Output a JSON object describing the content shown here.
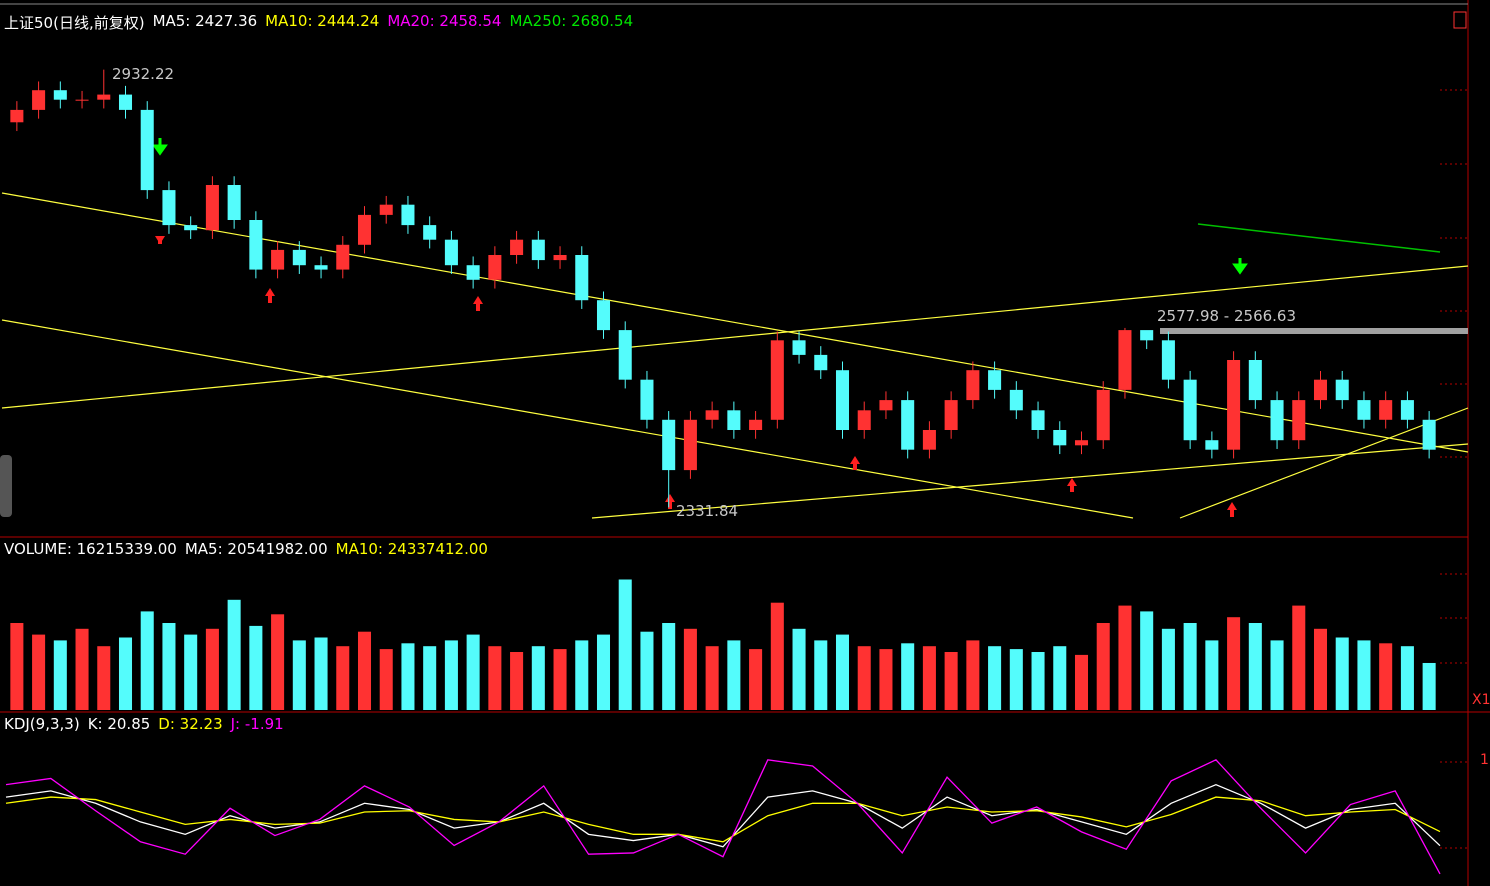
{
  "header": {
    "title": "上证50(日线,前复权)",
    "items": [
      {
        "text": "MA5: 2427.36",
        "color": "#ffffff"
      },
      {
        "text": "MA10: 2444.24",
        "color": "#ffff00"
      },
      {
        "text": "MA20: 2458.54",
        "color": "#ff00ff"
      },
      {
        "text": "MA250: 2680.54",
        "color": "#00e600"
      }
    ]
  },
  "volume_header": [
    {
      "text": "VOLUME: 16215339.00",
      "color": "#ffffff"
    },
    {
      "text": "MA5: 20541982.00",
      "color": "#ffffff"
    },
    {
      "text": "MA10: 24337412.00",
      "color": "#ffff00"
    }
  ],
  "kdj_header": [
    {
      "text": "KDJ(9,3,3)",
      "color": "#ffffff"
    },
    {
      "text": "K: 20.85",
      "color": "#ffffff"
    },
    {
      "text": "D: 32.23",
      "color": "#ffff00"
    },
    {
      "text": "J: -1.91",
      "color": "#ff00ff"
    }
  ],
  "annotations": [
    "2932.22",
    "2331.84",
    "2577.98 - 2566.63"
  ],
  "side_labels": [
    "X1",
    "1"
  ],
  "chart_data": [
    {
      "type": "candlestick",
      "ylim": [
        2294,
        3014
      ],
      "up_color": "#ff3232",
      "down_color": "#54fcfc",
      "open": [
        2860,
        2877,
        2904,
        2891,
        2891,
        2898,
        2877,
        2767,
        2719,
        2712,
        2774,
        2726,
        2658,
        2685,
        2664,
        2658,
        2692,
        2733,
        2747,
        2719,
        2699,
        2664,
        2644,
        2678,
        2699,
        2671,
        2678,
        2616,
        2575,
        2507,
        2452,
        2383,
        2452,
        2465,
        2438,
        2452,
        2561,
        2541,
        2520,
        2438,
        2465,
        2479,
        2411,
        2438,
        2479,
        2520,
        2493,
        2465,
        2438,
        2417,
        2424,
        2493,
        2575,
        2561,
        2507,
        2424,
        2411,
        2534,
        2479,
        2424,
        2479,
        2507,
        2479,
        2452,
        2479,
        2452
      ],
      "high": [
        2889,
        2916,
        2916,
        2903,
        2932.22,
        2910,
        2889,
        2779,
        2731,
        2786,
        2786,
        2738,
        2697,
        2697,
        2676,
        2704,
        2745,
        2759,
        2759,
        2731,
        2711,
        2676,
        2690,
        2711,
        2711,
        2690,
        2690,
        2628,
        2587,
        2519,
        2464,
        2464,
        2477,
        2477,
        2464,
        2573,
        2573,
        2553,
        2532,
        2477,
        2491,
        2491,
        2450,
        2491,
        2532,
        2532,
        2505,
        2477,
        2450,
        2436,
        2505,
        2577.98,
        2570,
        2573,
        2519,
        2436,
        2546,
        2546,
        2491,
        2491,
        2519,
        2519,
        2491,
        2491,
        2491,
        2464
      ],
      "low": [
        2848,
        2865,
        2879,
        2879,
        2879,
        2865,
        2755,
        2707,
        2700,
        2700,
        2714,
        2646,
        2646,
        2652,
        2646,
        2646,
        2680,
        2721,
        2707,
        2687,
        2652,
        2632,
        2632,
        2666,
        2659,
        2659,
        2604,
        2563,
        2495,
        2440,
        2331.84,
        2371,
        2440,
        2426,
        2426,
        2440,
        2529,
        2508,
        2426,
        2426,
        2453,
        2399,
        2399,
        2426,
        2467,
        2481,
        2453,
        2426,
        2405,
        2405,
        2412,
        2481,
        2549,
        2495,
        2412,
        2399,
        2399,
        2467,
        2412,
        2412,
        2467,
        2467,
        2440,
        2440,
        2440,
        2399
      ],
      "close": [
        2877,
        2904,
        2891,
        2891,
        2898,
        2877,
        2767,
        2719,
        2712,
        2774,
        2726,
        2658,
        2685,
        2664,
        2658,
        2692,
        2733,
        2747,
        2719,
        2699,
        2664,
        2644,
        2678,
        2699,
        2671,
        2678,
        2616,
        2575,
        2507,
        2452,
        2383,
        2452,
        2465,
        2438,
        2452,
        2561,
        2541,
        2520,
        2438,
        2465,
        2479,
        2411,
        2438,
        2479,
        2520,
        2493,
        2465,
        2438,
        2417,
        2424,
        2493,
        2575,
        2561,
        2507,
        2424,
        2411,
        2534,
        2479,
        2424,
        2479,
        2507,
        2479,
        2452,
        2479,
        2452,
        2411
      ]
    },
    {
      "type": "bar",
      "ylim": [
        0,
        50000000
      ],
      "values": [
        30000000,
        26000000,
        24000000,
        28000000,
        22000000,
        25000000,
        34000000,
        30000000,
        26000000,
        28000000,
        38000000,
        29000000,
        33000000,
        24000000,
        25000000,
        22000000,
        27000000,
        21000000,
        23000000,
        22000000,
        24000000,
        26000000,
        22000000,
        20000000,
        22000000,
        21000000,
        24000000,
        26000000,
        45000000,
        27000000,
        30000000,
        28000000,
        22000000,
        24000000,
        21000000,
        37000000,
        28000000,
        24000000,
        26000000,
        22000000,
        21000000,
        23000000,
        22000000,
        20000000,
        24000000,
        22000000,
        21000000,
        20000000,
        22000000,
        19000000,
        30000000,
        36000000,
        34000000,
        28000000,
        30000000,
        24000000,
        32000000,
        30000000,
        24000000,
        36000000,
        28000000,
        25000000,
        24000000,
        23000000,
        22000000,
        16215339
      ]
    },
    {
      "type": "line",
      "ylim": [
        -10,
        110
      ],
      "series": [
        {
          "name": "K",
          "color": "#ffffff",
          "values": [
            60,
            65,
            55,
            40,
            30,
            45,
            35,
            40,
            55,
            50,
            35,
            40,
            55,
            30,
            25,
            30,
            20,
            60,
            65,
            55,
            35,
            60,
            45,
            50,
            40,
            30,
            55,
            70,
            55,
            35,
            50,
            55,
            20.85
          ]
        },
        {
          "name": "D",
          "color": "#ffff00",
          "values": [
            55,
            60,
            58,
            48,
            38,
            42,
            38,
            39,
            48,
            49,
            42,
            40,
            48,
            38,
            30,
            30,
            24,
            45,
            55,
            55,
            45,
            52,
            48,
            49,
            44,
            36,
            46,
            60,
            57,
            45,
            48,
            50,
            32.23
          ]
        },
        {
          "name": "J",
          "color": "#ff00ff",
          "values": [
            70,
            75,
            49,
            24,
            14,
            51,
            29,
            42,
            69,
            52,
            21,
            40,
            69,
            14,
            15,
            30,
            12,
            90,
            85,
            55,
            15,
            76,
            39,
            52,
            32,
            18,
            73,
            90,
            51,
            15,
            54,
            65,
            -1.91
          ]
        }
      ]
    }
  ]
}
